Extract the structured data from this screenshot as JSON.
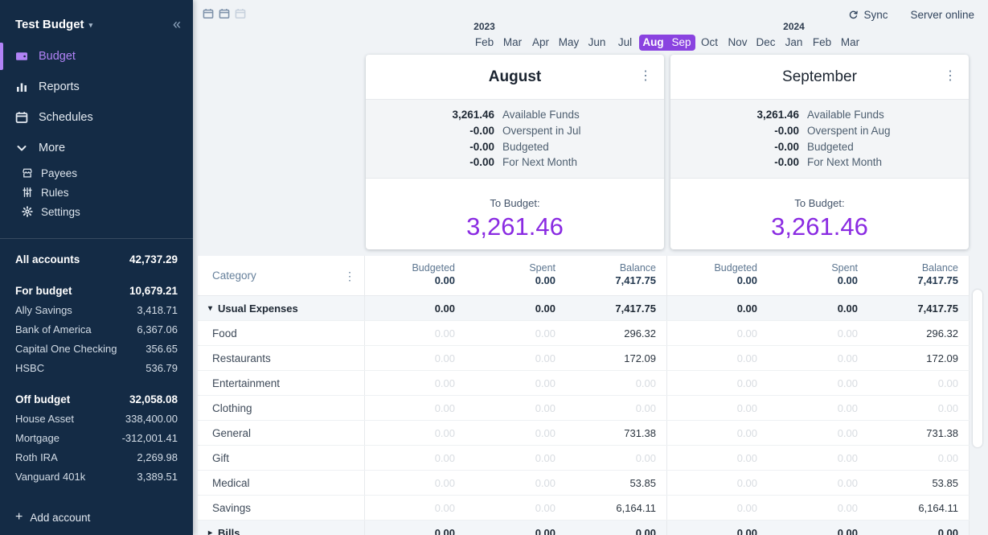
{
  "app": {
    "colors": {
      "sidebar_bg": "#142B45",
      "sidebar_accent": "#B183F6",
      "page_bg": "#F0F3F6",
      "month_select": "#8A43E0",
      "to_budget_purple": "#8A2BE2"
    }
  },
  "sidebar": {
    "title": "Test Budget",
    "title_caret_icon": "chevron-down-icon",
    "collapse_glyph": "«",
    "nav": [
      {
        "label": "Budget",
        "icon": "wallet-icon",
        "selected": true
      },
      {
        "label": "Reports",
        "icon": "bar-chart-icon",
        "selected": false
      },
      {
        "label": "Schedules",
        "icon": "calendar-icon",
        "selected": false
      },
      {
        "label": "More",
        "icon": "chevron-down-icon",
        "selected": false,
        "expanded": true
      }
    ],
    "subnav": [
      {
        "label": "Payees",
        "icon": "store-icon"
      },
      {
        "label": "Rules",
        "icon": "sliders-icon"
      },
      {
        "label": "Settings",
        "icon": "gear-icon"
      }
    ],
    "accounts": {
      "all": {
        "label": "All accounts",
        "value": "42,737.29"
      },
      "groups": [
        {
          "label": "For budget",
          "value": "10,679.21",
          "items": [
            {
              "label": "Ally Savings",
              "value": "3,418.71"
            },
            {
              "label": "Bank of America",
              "value": "6,367.06"
            },
            {
              "label": "Capital One Checking",
              "value": "356.65"
            },
            {
              "label": "HSBC",
              "value": "536.79"
            }
          ]
        },
        {
          "label": "Off budget",
          "value": "32,058.08",
          "items": [
            {
              "label": "House Asset",
              "value": "338,400.00"
            },
            {
              "label": "Mortgage",
              "value": "-312,001.41"
            },
            {
              "label": "Roth IRA",
              "value": "2,269.98"
            },
            {
              "label": "Vanguard 401k",
              "value": "3,389.51"
            }
          ]
        }
      ],
      "add_label": "Add account",
      "add_icon": "plus-icon"
    }
  },
  "topbar": {
    "month_count_buttons": [
      {
        "icon": "calendar-icon",
        "active": true
      },
      {
        "icon": "calendar-icon",
        "active": true
      },
      {
        "icon": "calendar-icon",
        "active": false
      }
    ],
    "sync_icon": "sync-icon",
    "sync_label": "Sync",
    "server_status": "Server online"
  },
  "month_picker": {
    "years": [
      {
        "label": "2023",
        "month_index": 0
      },
      {
        "label": "2024",
        "month_index": 11
      }
    ],
    "months": [
      {
        "label": "Feb"
      },
      {
        "label": "Mar"
      },
      {
        "label": "Apr"
      },
      {
        "label": "May"
      },
      {
        "label": "Jun"
      },
      {
        "label": "Jul"
      },
      {
        "label": "Aug",
        "selected": true,
        "current": true
      },
      {
        "label": "Sep",
        "selected": true
      },
      {
        "label": "Oct"
      },
      {
        "label": "Nov"
      },
      {
        "label": "Dec"
      },
      {
        "label": "Jan"
      },
      {
        "label": "Feb"
      },
      {
        "label": "Mar"
      }
    ]
  },
  "cards": [
    {
      "title": "August",
      "current": true,
      "summary": [
        {
          "amount": "3,261.46",
          "label": "Available Funds"
        },
        {
          "amount": "-0.00",
          "label": "Overspent in Jul"
        },
        {
          "amount": "-0.00",
          "label": "Budgeted"
        },
        {
          "amount": "-0.00",
          "label": "For Next Month"
        }
      ],
      "to_budget_label": "To Budget:",
      "to_budget_value": "3,261.46"
    },
    {
      "title": "September",
      "current": false,
      "summary": [
        {
          "amount": "3,261.46",
          "label": "Available Funds"
        },
        {
          "amount": "-0.00",
          "label": "Overspent in Aug"
        },
        {
          "amount": "-0.00",
          "label": "Budgeted"
        },
        {
          "amount": "-0.00",
          "label": "For Next Month"
        }
      ],
      "to_budget_label": "To Budget:",
      "to_budget_value": "3,261.46"
    }
  ],
  "table": {
    "category_header": "Category",
    "columns": [
      "Budgeted",
      "Spent",
      "Balance"
    ],
    "header_totals": [
      [
        "0.00",
        "0.00",
        "7,417.75"
      ],
      [
        "0.00",
        "0.00",
        "7,417.75"
      ]
    ],
    "rows": [
      {
        "name": "Usual Expenses",
        "type": "group",
        "expanded": true,
        "months": [
          [
            "0.00",
            "0.00",
            "7,417.75"
          ],
          [
            "0.00",
            "0.00",
            "7,417.75"
          ]
        ]
      },
      {
        "name": "Food",
        "type": "category",
        "months": [
          [
            "0.00",
            "0.00",
            "296.32"
          ],
          [
            "0.00",
            "0.00",
            "296.32"
          ]
        ]
      },
      {
        "name": "Restaurants",
        "type": "category",
        "months": [
          [
            "0.00",
            "0.00",
            "172.09"
          ],
          [
            "0.00",
            "0.00",
            "172.09"
          ]
        ]
      },
      {
        "name": "Entertainment",
        "type": "category",
        "months": [
          [
            "0.00",
            "0.00",
            "0.00"
          ],
          [
            "0.00",
            "0.00",
            "0.00"
          ]
        ]
      },
      {
        "name": "Clothing",
        "type": "category",
        "months": [
          [
            "0.00",
            "0.00",
            "0.00"
          ],
          [
            "0.00",
            "0.00",
            "0.00"
          ]
        ]
      },
      {
        "name": "General",
        "type": "category",
        "months": [
          [
            "0.00",
            "0.00",
            "731.38"
          ],
          [
            "0.00",
            "0.00",
            "731.38"
          ]
        ]
      },
      {
        "name": "Gift",
        "type": "category",
        "months": [
          [
            "0.00",
            "0.00",
            "0.00"
          ],
          [
            "0.00",
            "0.00",
            "0.00"
          ]
        ]
      },
      {
        "name": "Medical",
        "type": "category",
        "months": [
          [
            "0.00",
            "0.00",
            "53.85"
          ],
          [
            "0.00",
            "0.00",
            "53.85"
          ]
        ]
      },
      {
        "name": "Savings",
        "type": "category",
        "months": [
          [
            "0.00",
            "0.00",
            "6,164.11"
          ],
          [
            "0.00",
            "0.00",
            "6,164.11"
          ]
        ]
      },
      {
        "name": "Bills",
        "type": "group",
        "expanded": false,
        "months": [
          [
            "0.00",
            "0.00",
            "0.00"
          ],
          [
            "0.00",
            "0.00",
            "0.00"
          ]
        ]
      }
    ]
  }
}
